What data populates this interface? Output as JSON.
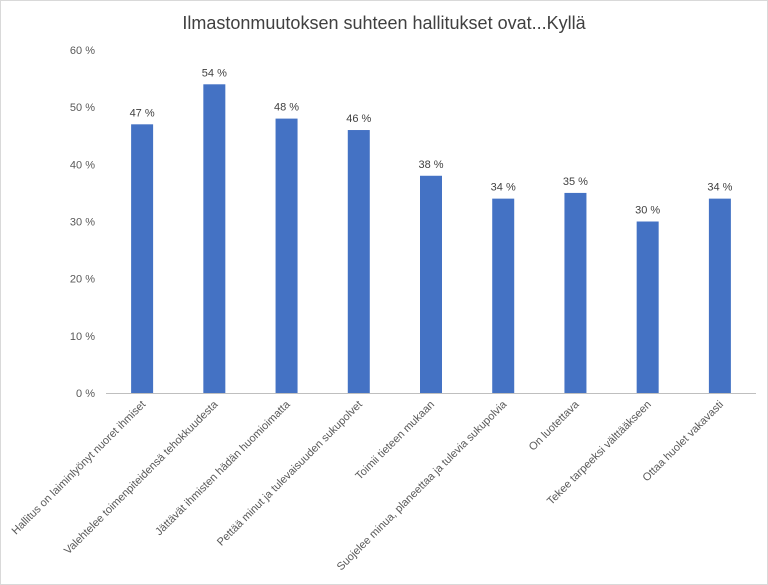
{
  "chart_data": {
    "type": "bar",
    "title": "Ilmastonmuutoksen suhteen hallitukset ovat...Kyllä",
    "xlabel": "",
    "ylabel": "",
    "categories": [
      "Hallitus on laiminlyönyt nuoret ihmiset",
      "Valehtelee toimenpiteidensä tehokkuudesta",
      "Jättävät ihmisten hädän huomioimatta",
      "Pettää minut ja tulevaisuuden sukupolvet",
      "Toimii tieteen mukaan",
      "Suojelee minua, planeettaa ja tulevia sukupolvia",
      "On luotettava",
      "Tekee tarpeeksi välttääkseen",
      "Ottaa huolet vakavasti"
    ],
    "values": [
      47,
      54,
      48,
      46,
      38,
      34,
      35,
      30,
      34
    ],
    "data_labels": [
      "47 %",
      "54 %",
      "48 %",
      "46 %",
      "38 %",
      "34 %",
      "35 %",
      "30 %",
      "34 %"
    ],
    "ylim": [
      0,
      60
    ],
    "yticks": [
      0,
      10,
      20,
      30,
      40,
      50,
      60
    ],
    "ytick_labels": [
      "0 %",
      "10 %",
      "20 %",
      "30 %",
      "40 %",
      "50 %",
      "60 %"
    ],
    "bar_color": "#4472c4",
    "grid": false,
    "legend": "none"
  }
}
